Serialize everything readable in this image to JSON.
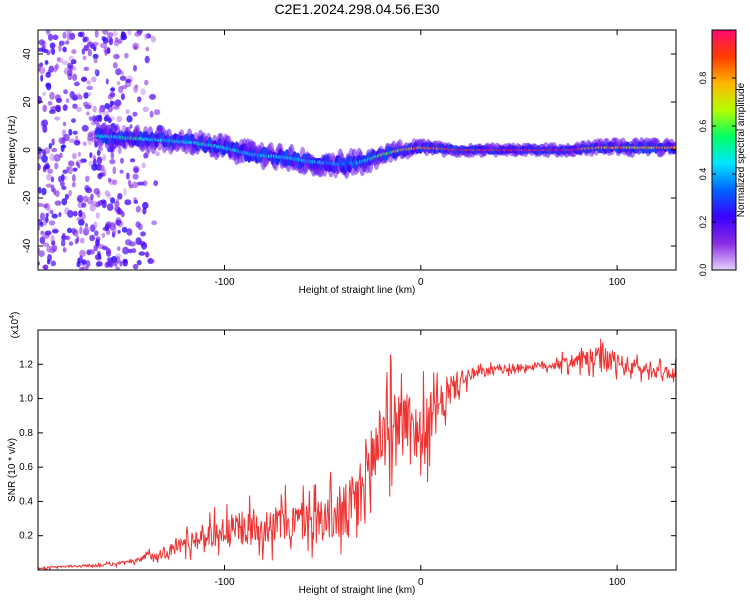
{
  "figure": {
    "title": "C2E1.2024.298.04.56.E30"
  },
  "chart_data": [
    {
      "type": "heatmap",
      "title": "C2E1.2024.298.04.56.E30",
      "xlabel": "Height of straight line (km)",
      "ylabel": "Frequency (Hz)",
      "xlim": [
        -195,
        130
      ],
      "ylim": [
        -50,
        50
      ],
      "x_ticks": [
        -100,
        0,
        100
      ],
      "y_ticks": [
        -40,
        -20,
        0,
        20,
        40
      ],
      "colorbar": {
        "label": "Normalized spectral amplitude",
        "range": [
          0,
          1
        ],
        "ticks": [
          0.0,
          0.2,
          0.4,
          0.6,
          0.8
        ],
        "tick_labels": [
          "0.0",
          "0.2",
          "0.4",
          "0.6",
          "0.8"
        ],
        "colormap": [
          "#e6d2ff",
          "#8a2be2",
          "#3c00ff",
          "#0064ff",
          "#00e6ff",
          "#00ff64",
          "#b4ff00",
          "#ffb400",
          "#ff3c00",
          "#ff0a6e"
        ]
      },
      "signal_trace": {
        "x": [
          -165,
          -150,
          -130,
          -115,
          -100,
          -85,
          -70,
          -55,
          -40,
          -30,
          -20,
          -10,
          0,
          10,
          20,
          75,
          90,
          110,
          130
        ],
        "frequency": [
          6,
          5,
          4,
          3,
          1,
          -2,
          -3,
          -5,
          -6,
          -5,
          -2,
          0,
          1,
          0.5,
          0,
          0,
          1,
          1,
          1
        ],
        "peak_amplitude": [
          0.45,
          0.5,
          0.45,
          0.5,
          0.45,
          0.4,
          0.45,
          0.4,
          0.35,
          0.4,
          0.6,
          0.7,
          0.8,
          0.85,
          0.95,
          0.95,
          0.8,
          0.75,
          0.8
        ]
      },
      "noise_region": {
        "x_range": [
          -195,
          -130
        ],
        "frequency_range": [
          -50,
          50
        ],
        "amplitude_range": [
          0.05,
          0.25
        ]
      },
      "grid": false
    },
    {
      "type": "line",
      "xlabel": "Height of straight line (km)",
      "ylabel": "SNR (10 * v/v)",
      "y_multiplier": "(x10",
      "y_multiplier_exponent": "4",
      "xlim": [
        -195,
        130
      ],
      "ylim": [
        0,
        14000
      ],
      "x_ticks": [
        -100,
        0,
        100
      ],
      "y_ticks": [
        2000,
        4000,
        6000,
        8000,
        10000,
        12000
      ],
      "y_tick_labels": [
        "0.2",
        "0.4",
        "0.6",
        "0.8",
        "1.0",
        "1.2"
      ],
      "series": [
        {
          "color": "#ee3333",
          "x": [
            -195,
            -180,
            -160,
            -145,
            -140,
            -130,
            -120,
            -110,
            -100,
            -90,
            -80,
            -70,
            -60,
            -50,
            -40,
            -35,
            -30,
            -25,
            -20,
            -15,
            -10,
            -5,
            0,
            5,
            10,
            15,
            20,
            25,
            30,
            40,
            50,
            60,
            70,
            80,
            90,
            95,
            100,
            110,
            120,
            130
          ],
          "values": [
            100,
            200,
            300,
            500,
            800,
            1000,
            1600,
            2000,
            2300,
            2400,
            2600,
            2700,
            2900,
            3000,
            3200,
            3500,
            4500,
            6500,
            8000,
            8500,
            9000,
            8800,
            7500,
            8800,
            9500,
            10500,
            11000,
            11300,
            11500,
            11700,
            11800,
            11900,
            12000,
            12200,
            12300,
            12200,
            12000,
            11800,
            11600,
            11500
          ],
          "noise_amplitude": [
            50,
            80,
            100,
            150,
            300,
            400,
            700,
            900,
            1100,
            1200,
            1300,
            1400,
            1500,
            1600,
            2000,
            2600,
            3000,
            3200,
            3000,
            2600,
            2000,
            2200,
            2600,
            2000,
            1500,
            1200,
            800,
            500,
            400,
            300,
            300,
            300,
            400,
            600,
            900,
            900,
            800,
            600,
            500,
            500
          ]
        }
      ],
      "grid": false
    }
  ]
}
